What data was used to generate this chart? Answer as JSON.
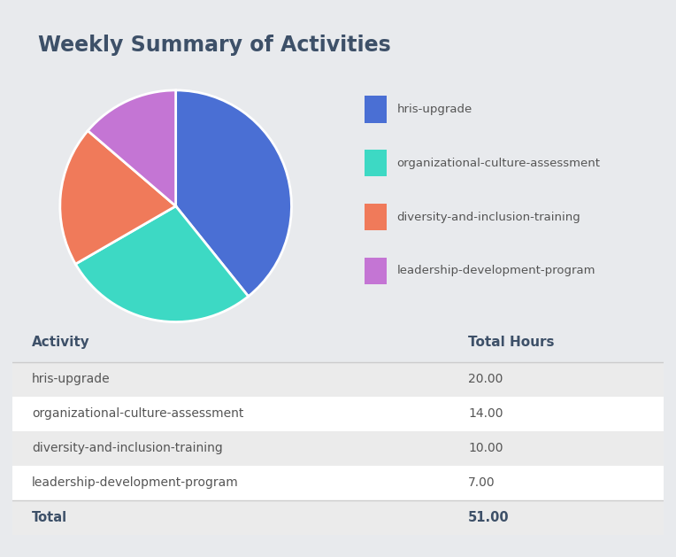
{
  "title": "Weekly Summary of Activities",
  "title_color": "#3d5068",
  "background_color": "#e8eaed",
  "card_color": "#ffffff",
  "activities": [
    "hris-upgrade",
    "organizational-culture-assessment",
    "diversity-and-inclusion-training",
    "leadership-development-program"
  ],
  "hours": [
    20.0,
    14.0,
    10.0,
    7.0
  ],
  "total": 51.0,
  "pie_colors": [
    "#4a6fd4",
    "#3dd9c4",
    "#f07a5a",
    "#c475d4"
  ],
  "table_header": [
    "Activity",
    "Total Hours"
  ],
  "table_bg_alt": "#ebebeb",
  "table_bg_white": "#f5f5f5",
  "table_header_color": "#3d5068",
  "table_text_color": "#555555",
  "table_total_color": "#3d5068",
  "line_color": "#cccccc",
  "card_border_color": "#d0d0d0"
}
